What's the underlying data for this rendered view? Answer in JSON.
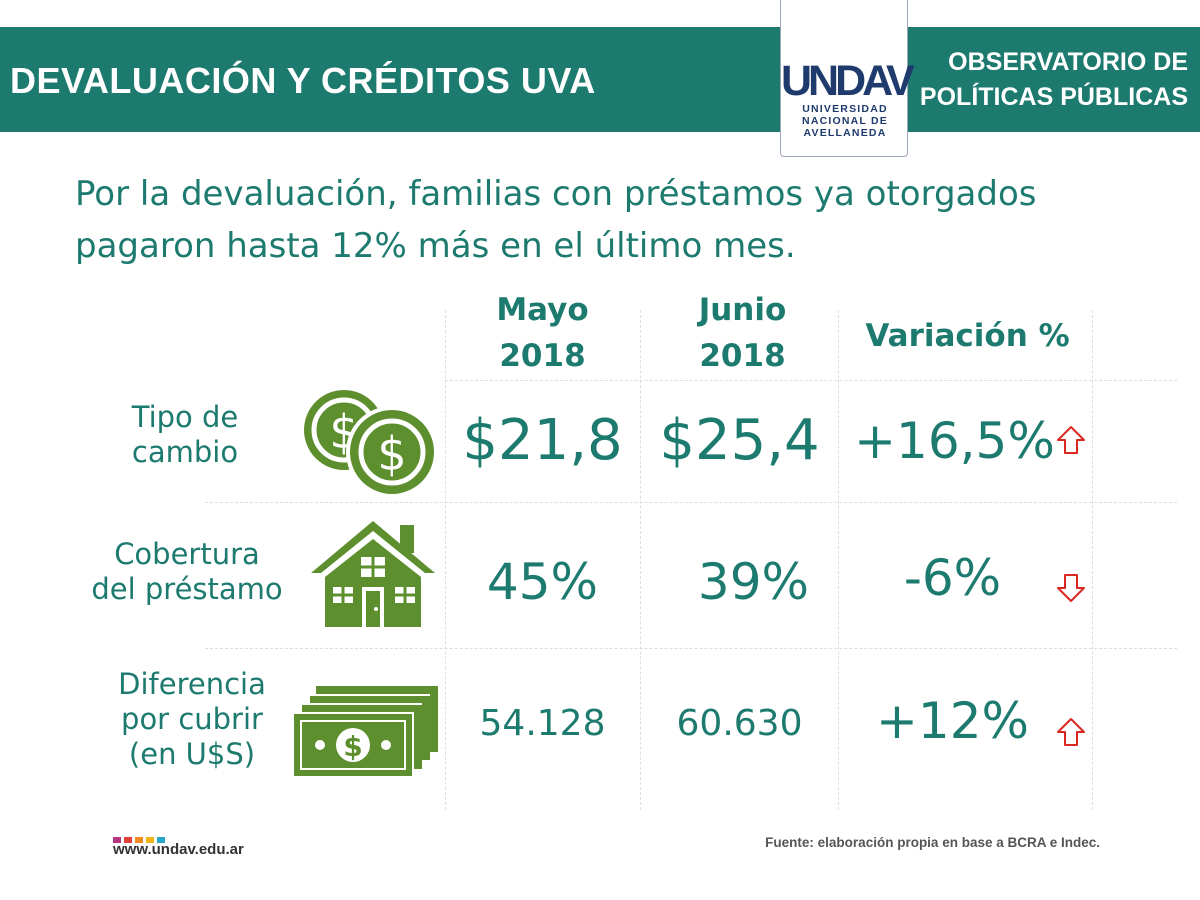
{
  "header": {
    "title": "DEVALUACIÓN Y CRÉDITOS UVA",
    "observatorio_line1": "OBSERVATORIO DE",
    "observatorio_line2": "POLÍTICAS PÚBLICAS",
    "logo_word": "UNDAV",
    "logo_line1": "UNIVERSIDAD",
    "logo_line2": "NACIONAL DE",
    "logo_line3": "AVELLANEDA"
  },
  "headline": "Por la devaluación, familias con préstamos ya otorgados pagaron hasta 12% más en el último mes.",
  "table": {
    "columns": [
      {
        "line1": "Mayo",
        "line2": "2018"
      },
      {
        "line1": "Junio",
        "line2": "2018"
      },
      {
        "line1": "Variación %",
        "line2": ""
      }
    ],
    "rows": [
      {
        "label1": "Tipo de",
        "label2": "cambio",
        "label3": "",
        "icon": "coins-icon",
        "mayo": "$21,8",
        "junio": "$25,4",
        "variacion": "+16,5%",
        "trend": "up"
      },
      {
        "label1": "Cobertura",
        "label2": "del préstamo",
        "label3": "",
        "icon": "house-icon",
        "mayo": "45%",
        "junio": "39%",
        "variacion": "-6%",
        "trend": "down"
      },
      {
        "label1": "Diferencia",
        "label2": "por cubrir",
        "label3": "(en U$S)",
        "icon": "banknotes-icon",
        "mayo": "54.128",
        "junio": "60.630",
        "variacion": "+12%",
        "trend": "up"
      }
    ]
  },
  "footer": {
    "url": "www.undav.edu.ar",
    "source": "Fuente: elaboración propia en base a BCRA e Indec."
  },
  "colors": {
    "teal": "#1d7a6f",
    "green": "#5e8f2f",
    "navy": "#1f3b6e",
    "arrow_red": "#d9281f"
  }
}
